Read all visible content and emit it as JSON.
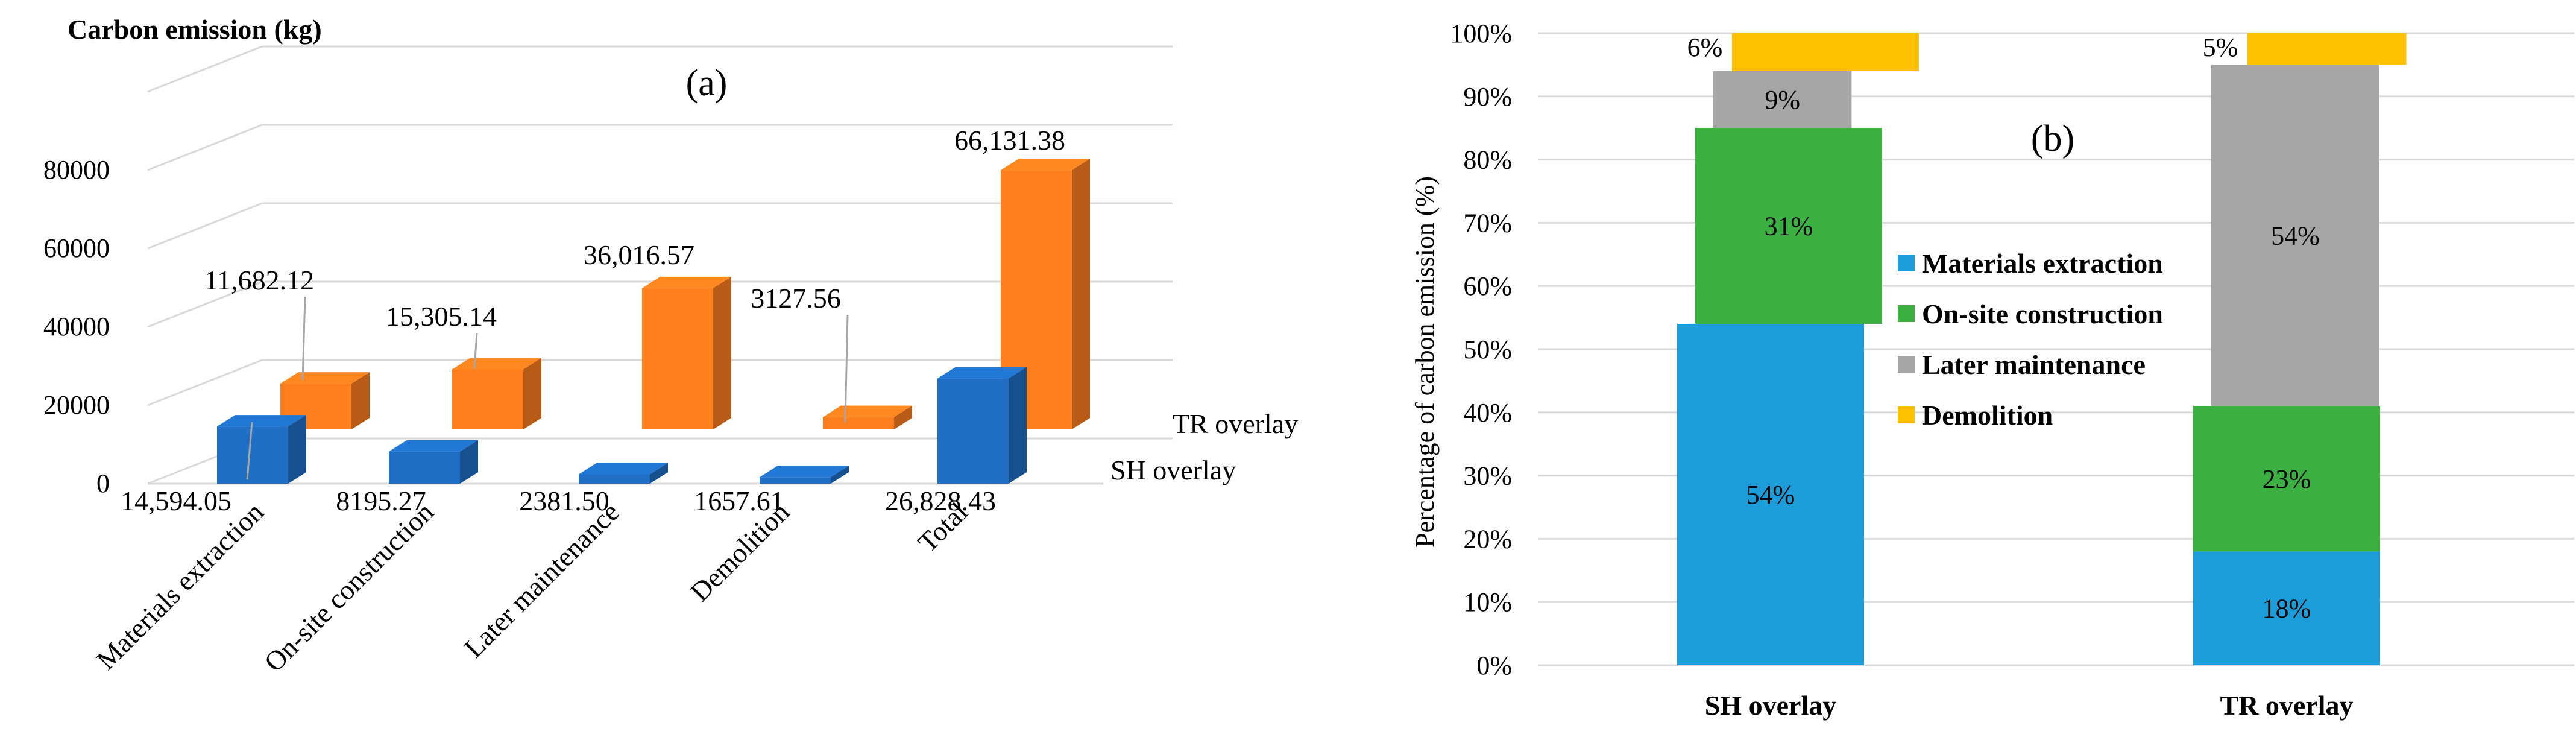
{
  "chart_data": [
    {
      "panel": "(a)",
      "type": "bar",
      "style": "3d-clustered",
      "title": "Carbon emission (kg)",
      "categories": [
        "Materials extraction",
        "On-site construction",
        "Later maintenance",
        "Demolition",
        "Total"
      ],
      "series": [
        {
          "name": "SH overlay",
          "color": "#1F6FC5",
          "values": [
            14594.05,
            8195.27,
            2381.5,
            1657.61,
            26828.43
          ],
          "labels": [
            "14,594.05",
            "8195.27",
            "2381.50",
            "1657.61",
            "26,828.43"
          ]
        },
        {
          "name": "TR overlay",
          "color": "#FF7F1E",
          "values": [
            11682.12,
            15305.14,
            36016.57,
            3127.56,
            66131.38
          ],
          "labels": [
            "11,682.12",
            "15,305.14",
            "36,016.57",
            "3127.56",
            "66,131.38"
          ]
        }
      ],
      "yticks": [
        "0",
        "20000",
        "40000",
        "60000",
        "80000"
      ],
      "ylim": [
        0,
        100000
      ]
    },
    {
      "panel": "(b)",
      "type": "bar",
      "style": "stacked-percent",
      "ylabel": "Percentage of carbon emission (%)",
      "categories": [
        "SH overlay",
        "TR overlay"
      ],
      "series": [
        {
          "name": "Materials extraction",
          "color": "#1C9DD9",
          "values": [
            54,
            18
          ],
          "labels": [
            "54%",
            "18%"
          ]
        },
        {
          "name": "On-site construction",
          "color": "#3CB043",
          "values": [
            31,
            23
          ],
          "labels": [
            "31%",
            "23%"
          ]
        },
        {
          "name": "Later maintenance",
          "color": "#A6A6A6",
          "values": [
            9,
            54
          ],
          "labels": [
            "9%",
            "54%"
          ]
        },
        {
          "name": "Demolition",
          "color": "#FFC000",
          "values": [
            6,
            5
          ],
          "labels": [
            "6%",
            "5%"
          ]
        }
      ],
      "yticks": [
        "0%",
        "10%",
        "20%",
        "30%",
        "40%",
        "50%",
        "60%",
        "70%",
        "80%",
        "90%",
        "100%"
      ],
      "ylim": [
        0,
        100
      ],
      "legend": "center"
    }
  ]
}
